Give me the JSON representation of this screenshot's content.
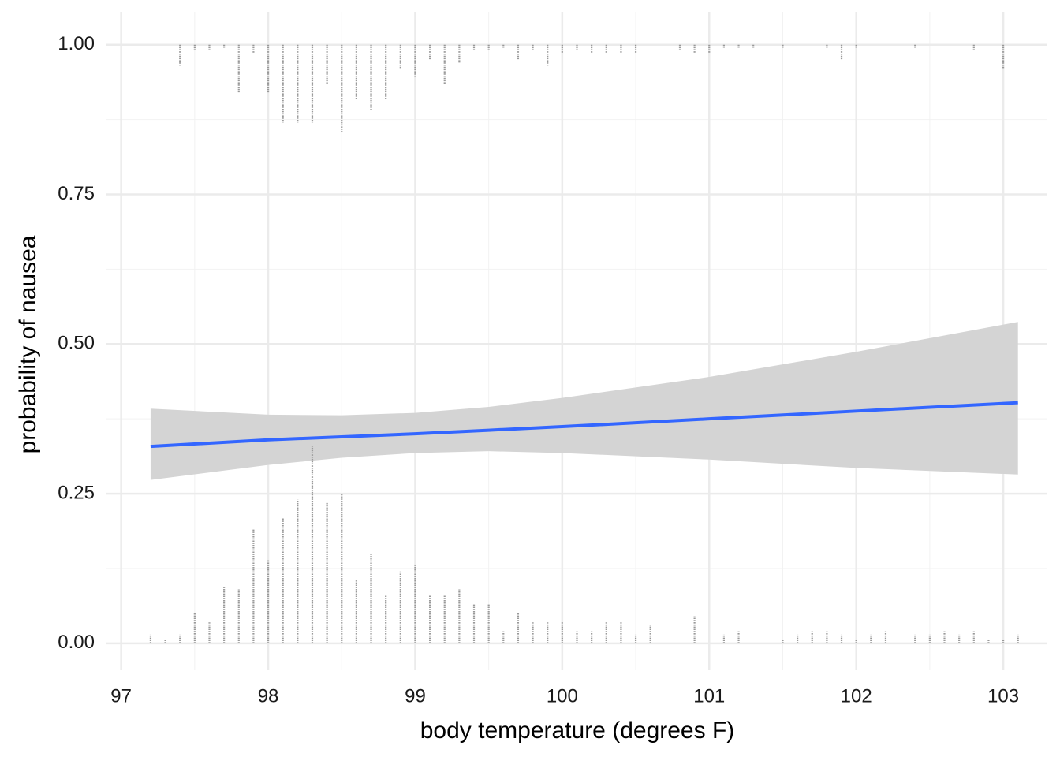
{
  "chart_data": {
    "type": "dotstack-fit",
    "x_label": "body temperature (degrees F)",
    "y_label": "probability of nausea",
    "xlim": [
      96.9,
      103.3
    ],
    "ylim": [
      -0.045,
      1.055
    ],
    "xticks": [
      97,
      98,
      99,
      100,
      101,
      102,
      103
    ],
    "yticks": [
      {
        "value": 0,
        "label": "0.00"
      },
      {
        "value": 0.25,
        "label": "0.25"
      },
      {
        "value": 0.5,
        "label": "0.50"
      },
      {
        "value": 0.75,
        "label": "0.75"
      },
      {
        "value": 1,
        "label": "1.00"
      }
    ],
    "grid": true,
    "minor_grid": true,
    "dot_color": "#999999",
    "bottom_stacks": {
      "base": 0,
      "x": [
        97.2,
        97.3,
        97.4,
        97.5,
        97.6,
        97.7,
        97.8,
        97.9,
        98.0,
        98.1,
        98.2,
        98.3,
        98.4,
        98.5,
        98.6,
        98.7,
        98.8,
        98.9,
        99.0,
        99.1,
        99.2,
        99.3,
        99.4,
        99.5,
        99.6,
        99.7,
        99.8,
        99.9,
        100.0,
        100.1,
        100.2,
        100.3,
        100.4,
        100.5,
        100.6,
        100.9,
        101.1,
        101.2,
        101.5,
        101.6,
        101.7,
        101.8,
        101.9,
        102.0,
        102.1,
        102.2,
        102.4,
        102.5,
        102.6,
        102.7,
        102.8,
        102.9,
        103.0,
        103.1
      ],
      "values": [
        0.015,
        0.005,
        0.015,
        0.05,
        0.035,
        0.095,
        0.09,
        0.19,
        0.14,
        0.21,
        0.24,
        0.33,
        0.235,
        0.25,
        0.105,
        0.15,
        0.08,
        0.12,
        0.13,
        0.08,
        0.08,
        0.09,
        0.065,
        0.065,
        0.02,
        0.05,
        0.035,
        0.035,
        0.035,
        0.02,
        0.02,
        0.035,
        0.035,
        0.015,
        0.03,
        0.045,
        0.015,
        0.02,
        0.005,
        0.015,
        0.02,
        0.02,
        0.015,
        0.005,
        0.015,
        0.02,
        0.015,
        0.015,
        0.02,
        0.015,
        0.02,
        0.005,
        0.005,
        0.015
      ]
    },
    "top_stacks": {
      "base": 1,
      "x": [
        97.4,
        97.5,
        97.6,
        97.7,
        97.8,
        97.9,
        98.0,
        98.1,
        98.2,
        98.3,
        98.4,
        98.5,
        98.6,
        98.7,
        98.8,
        98.9,
        99.0,
        99.1,
        99.2,
        99.3,
        99.4,
        99.5,
        99.6,
        99.7,
        99.8,
        99.9,
        100.0,
        100.1,
        100.2,
        100.3,
        100.4,
        100.5,
        100.8,
        100.9,
        101.0,
        101.1,
        101.2,
        101.3,
        101.5,
        101.8,
        101.9,
        102.0,
        102.4,
        102.8,
        103.0
      ],
      "values": [
        0.965,
        0.99,
        0.99,
        0.995,
        0.92,
        0.985,
        0.92,
        0.87,
        0.87,
        0.87,
        0.935,
        0.855,
        0.91,
        0.89,
        0.91,
        0.96,
        0.945,
        0.975,
        0.935,
        0.97,
        0.99,
        0.99,
        0.995,
        0.975,
        0.99,
        0.965,
        0.985,
        0.99,
        0.985,
        0.985,
        0.985,
        0.985,
        0.99,
        0.985,
        0.985,
        0.995,
        0.995,
        0.995,
        0.995,
        0.995,
        0.975,
        0.995,
        0.995,
        0.99,
        0.96
      ]
    },
    "fit": {
      "color": "#3366FF",
      "band_color": "#d4d4d4",
      "x": [
        97.2,
        98,
        98.5,
        99,
        99.5,
        100,
        101,
        102,
        103.1
      ],
      "values": [
        0.329,
        0.34,
        0.345,
        0.35,
        0.356,
        0.362,
        0.375,
        0.388,
        0.402
      ],
      "lower": [
        0.273,
        0.298,
        0.31,
        0.318,
        0.321,
        0.318,
        0.307,
        0.293,
        0.282
      ],
      "upper": [
        0.392,
        0.382,
        0.381,
        0.385,
        0.395,
        0.41,
        0.445,
        0.487,
        0.537
      ]
    }
  }
}
